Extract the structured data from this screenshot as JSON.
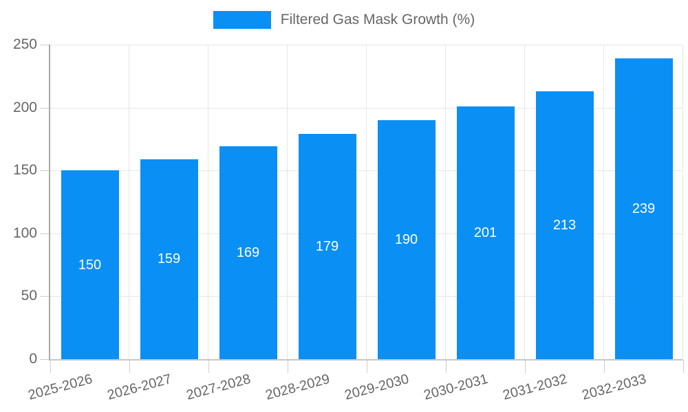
{
  "chart_data": {
    "type": "bar",
    "title": "",
    "legend": "Filtered Gas Mask Growth (%)",
    "legend_position": "top",
    "categories": [
      "2025-2026",
      "2026-2027",
      "2027-2028",
      "2028-2029",
      "2029-2030",
      "2030-2031",
      "2031-2032",
      "2032-2033"
    ],
    "values": [
      150,
      159,
      169,
      179,
      190,
      201,
      213,
      239
    ],
    "xlabel": "",
    "ylabel": "",
    "ylim": [
      0,
      250
    ],
    "yticks": [
      0,
      50,
      100,
      150,
      200,
      250
    ],
    "x_tick_rotation_deg": -15,
    "grid": true,
    "value_labels_position": "center",
    "bar_color": "#0a8ff5",
    "value_label_color": "#ffffff",
    "axis_text_color": "#666666",
    "gridline_color": "#e6e6e6",
    "tick_color": "#cccccc",
    "y_axis_line_color": "#a8a8a8",
    "x_axis_line_color": "#c6c6c6"
  }
}
